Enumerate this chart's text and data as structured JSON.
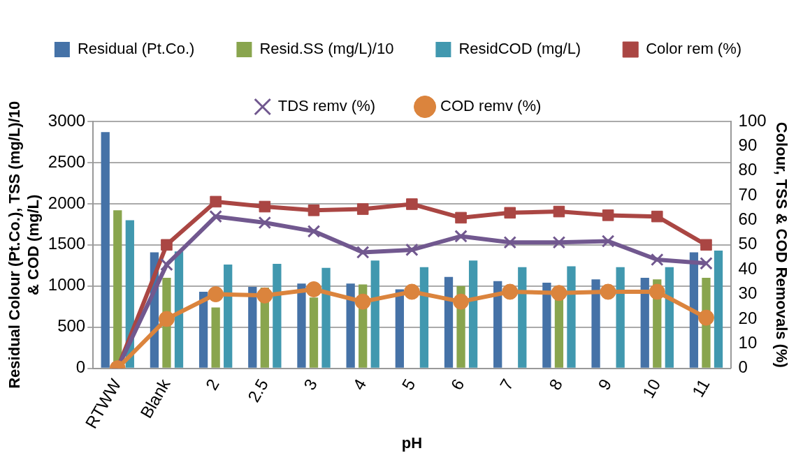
{
  "chart_data": {
    "type": "bar",
    "xlabel": "pH",
    "ylabel": "Residual Colour (Pt.Co.), TSS (mg/L)/10 & COD (mg/L)",
    "y2label": "Colour, TSS & COD Removals (%)",
    "categories": [
      "RTWW",
      "Blank",
      "2",
      "2.5",
      "3",
      "4",
      "5",
      "6",
      "7",
      "8",
      "9",
      "10",
      "11"
    ],
    "series": [
      {
        "name": "Residual (Pt.Co.)",
        "color": "#4572a7",
        "values": [
          2870,
          1410,
          930,
          990,
          1030,
          1030,
          960,
          1110,
          1060,
          1040,
          1080,
          1100,
          1410
        ]
      },
      {
        "name": "Resid.SS (mg/L)/10",
        "color": "#89a54e",
        "values": [
          1920,
          1100,
          740,
          980,
          860,
          1020,
          null,
          1000,
          null,
          1000,
          null,
          1080,
          1100
        ]
      },
      {
        "name": "ResidCOD (mg/L)",
        "color": "#4198af",
        "values": [
          1800,
          1420,
          1260,
          1270,
          1220,
          1310,
          1230,
          1310,
          1230,
          1240,
          1230,
          1230,
          1430
        ]
      },
      {
        "name": "Color rem (%)",
        "type": "line",
        "axis": "y2",
        "marker": "square",
        "color": "#aa4643",
        "values": [
          0,
          50,
          67.5,
          65.5,
          64,
          64.5,
          66.5,
          61,
          63,
          63.5,
          62,
          61.5,
          50
        ]
      },
      {
        "name": "TDS remv (%)",
        "type": "line",
        "axis": "y2",
        "marker": "cross",
        "color": "#71588f",
        "values": [
          0,
          42,
          61.5,
          59,
          55.5,
          47,
          48,
          53.5,
          51,
          51,
          51.5,
          44,
          42.5
        ]
      },
      {
        "name": "COD remv (%)",
        "type": "line",
        "axis": "y2",
        "marker": "circle",
        "color": "#db843d",
        "values": [
          0,
          20,
          30,
          29.5,
          32,
          27,
          31,
          27,
          31,
          30.5,
          31,
          31,
          20.5
        ]
      }
    ],
    "ylim": [
      0,
      3000
    ],
    "yticks": [
      0,
      500,
      1000,
      1500,
      2000,
      2500,
      3000
    ],
    "y2lim": [
      0,
      100
    ],
    "y2ticks": [
      0,
      10,
      20,
      30,
      40,
      50,
      60,
      70,
      80,
      90,
      100
    ],
    "grid": "y",
    "legend": "top"
  }
}
